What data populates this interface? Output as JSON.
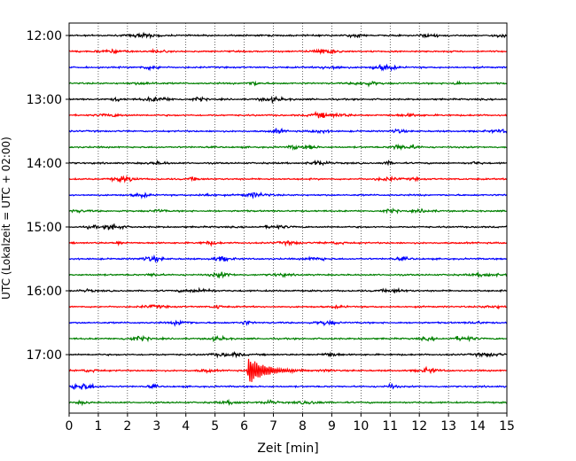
{
  "chart_data": {
    "type": "line",
    "title": "",
    "xlabel": "Zeit  [min]",
    "ylabel": "UTC (Lokalzeit = UTC + 02:00)",
    "xlim": [
      0,
      15
    ],
    "x_ticks": [
      "0",
      "1",
      "2",
      "3",
      "4",
      "5",
      "6",
      "7",
      "8",
      "9",
      "10",
      "11",
      "12",
      "13",
      "14",
      "15"
    ],
    "y_tick_labels": [
      "12:00",
      "13:00",
      "14:00",
      "15:00",
      "16:00",
      "17:00"
    ],
    "grid": "vertical dotted",
    "trace_colors": [
      "#000000",
      "#ff0000",
      "#0000ff",
      "#008000"
    ],
    "series": [
      {
        "start": "12:00",
        "color": "#000000",
        "events": []
      },
      {
        "start": "12:15",
        "color": "#ff0000",
        "events": []
      },
      {
        "start": "12:30",
        "color": "#0000ff",
        "events": []
      },
      {
        "start": "12:45",
        "color": "#008000",
        "events": []
      },
      {
        "start": "13:00",
        "color": "#000000",
        "events": []
      },
      {
        "start": "13:15",
        "color": "#ff0000",
        "events": []
      },
      {
        "start": "13:30",
        "color": "#0000ff",
        "events": []
      },
      {
        "start": "13:45",
        "color": "#008000",
        "events": []
      },
      {
        "start": "14:00",
        "color": "#000000",
        "events": []
      },
      {
        "start": "14:15",
        "color": "#ff0000",
        "events": []
      },
      {
        "start": "14:30",
        "color": "#0000ff",
        "events": []
      },
      {
        "start": "14:45",
        "color": "#008000",
        "events": []
      },
      {
        "start": "15:00",
        "color": "#000000",
        "events": []
      },
      {
        "start": "15:15",
        "color": "#ff0000",
        "events": []
      },
      {
        "start": "15:30",
        "color": "#0000ff",
        "events": []
      },
      {
        "start": "15:45",
        "color": "#008000",
        "events": []
      },
      {
        "start": "16:00",
        "color": "#000000",
        "events": []
      },
      {
        "start": "16:15",
        "color": "#ff0000",
        "events": []
      },
      {
        "start": "16:30",
        "color": "#0000ff",
        "events": []
      },
      {
        "start": "16:45",
        "color": "#008000",
        "events": []
      },
      {
        "start": "17:00",
        "color": "#000000",
        "events": []
      },
      {
        "start": "17:15",
        "color": "#ff0000",
        "events": [
          {
            "onset_min": 6.1,
            "peak_amplitude": 1.0,
            "duration_min": 2.0
          }
        ]
      },
      {
        "start": "17:30",
        "color": "#0000ff",
        "events": []
      },
      {
        "start": "17:45",
        "color": "#008000",
        "events": []
      }
    ]
  }
}
